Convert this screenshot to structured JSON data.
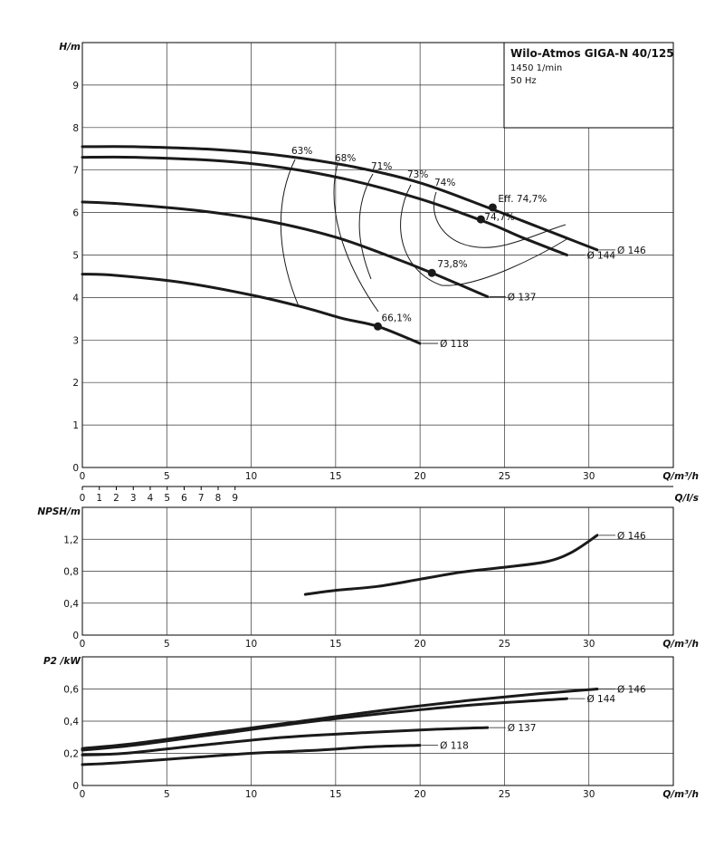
{
  "title_box": {
    "title": "Wilo-Atmos GIGA-N 40/125",
    "speed": "1450 1/min",
    "frequency": "50 Hz"
  },
  "chart_data": [
    {
      "type": "line",
      "name": "head",
      "ylabel": "H/m",
      "xlabel": "Q/m³/h",
      "xlim": [
        0,
        35
      ],
      "ylim": [
        0,
        10
      ],
      "x_ticks": [
        "0",
        "5",
        "10",
        "15",
        "20",
        "25",
        "30"
      ],
      "y_ticks": [
        "0",
        "1",
        "2",
        "3",
        "4",
        "5",
        "6",
        "7",
        "8",
        "9"
      ],
      "grid": true,
      "secondary_x": {
        "label": "Q/l/s",
        "lim": [
          0,
          9.72
        ],
        "ticks": [
          "0",
          "1",
          "2",
          "3",
          "4",
          "5",
          "6",
          "7",
          "8",
          "9"
        ]
      },
      "series": [
        {
          "name": "Ø 146",
          "x": [
            0,
            3,
            8,
            12,
            16,
            20,
            24,
            27,
            30.5
          ],
          "y": [
            7.55,
            7.55,
            7.48,
            7.33,
            7.08,
            6.7,
            6.12,
            5.66,
            5.12
          ]
        },
        {
          "name": "Ø 144",
          "x": [
            0,
            3,
            8,
            12,
            16,
            20,
            24,
            26,
            28.7
          ],
          "y": [
            7.3,
            7.3,
            7.22,
            7.05,
            6.75,
            6.32,
            5.76,
            5.42,
            5.0
          ]
        },
        {
          "name": "Ø 137",
          "x": [
            0,
            2.5,
            7,
            11,
            15,
            18,
            20.7,
            24
          ],
          "y": [
            6.25,
            6.2,
            6.04,
            5.8,
            5.42,
            5.0,
            4.58,
            4.02
          ]
        },
        {
          "name": "Ø 118",
          "x": [
            0,
            2,
            6,
            10,
            13,
            15.5,
            17.5,
            20
          ],
          "y": [
            4.55,
            4.52,
            4.35,
            4.06,
            3.78,
            3.5,
            3.32,
            2.92
          ]
        }
      ],
      "efficiency_labels": [
        "63%",
        "68%",
        "71%",
        "73%",
        "74%"
      ],
      "points": [
        {
          "label": "Eff. 74,7%",
          "x": 24.3,
          "y": 6.12
        },
        {
          "label": "74,7%",
          "x": 23.6,
          "y": 5.84
        },
        {
          "label": "73,8%",
          "x": 20.7,
          "y": 4.58
        },
        {
          "label": "66,1%",
          "x": 17.5,
          "y": 3.32
        }
      ]
    },
    {
      "type": "line",
      "name": "npsh",
      "ylabel": "NPSH/m",
      "xlabel": "Q/m³/h",
      "xlim": [
        0,
        35
      ],
      "ylim": [
        0,
        1.6
      ],
      "x_ticks": [
        "0",
        "5",
        "10",
        "15",
        "20",
        "25",
        "30"
      ],
      "y_ticks": [
        "0",
        "0,4",
        "0,8",
        "1,2"
      ],
      "grid": true,
      "series": [
        {
          "name": "Ø 146",
          "x": [
            13.2,
            15,
            17.5,
            20,
            22.5,
            25,
            27.5,
            29,
            30.5
          ],
          "y": [
            0.51,
            0.56,
            0.61,
            0.7,
            0.79,
            0.85,
            0.92,
            1.04,
            1.25
          ]
        }
      ]
    },
    {
      "type": "line",
      "name": "power",
      "ylabel": "P2 /kW",
      "xlabel": "Q/m³/h",
      "xlim": [
        0,
        35
      ],
      "ylim": [
        0,
        0.8
      ],
      "x_ticks": [
        "0",
        "5",
        "10",
        "15",
        "20",
        "25",
        "30"
      ],
      "y_ticks": [
        "0",
        "0,2",
        "0,4",
        "0,6"
      ],
      "grid": true,
      "series": [
        {
          "name": "Ø 146",
          "x": [
            0,
            3,
            8,
            13,
            18,
            23,
            27,
            30.5
          ],
          "y": [
            0.23,
            0.26,
            0.33,
            0.4,
            0.47,
            0.53,
            0.57,
            0.6
          ]
        },
        {
          "name": "Ø 144",
          "x": [
            0,
            3,
            8,
            13,
            18,
            23,
            28.7
          ],
          "y": [
            0.22,
            0.25,
            0.32,
            0.39,
            0.45,
            0.5,
            0.54
          ]
        },
        {
          "name": "Ø 137",
          "x": [
            0,
            2.5,
            7,
            12,
            17,
            21,
            24
          ],
          "y": [
            0.19,
            0.2,
            0.25,
            0.3,
            0.33,
            0.35,
            0.36
          ]
        },
        {
          "name": "Ø 118",
          "x": [
            0,
            2,
            6,
            10,
            14,
            17,
            20
          ],
          "y": [
            0.13,
            0.14,
            0.17,
            0.2,
            0.22,
            0.24,
            0.25
          ]
        }
      ]
    }
  ]
}
